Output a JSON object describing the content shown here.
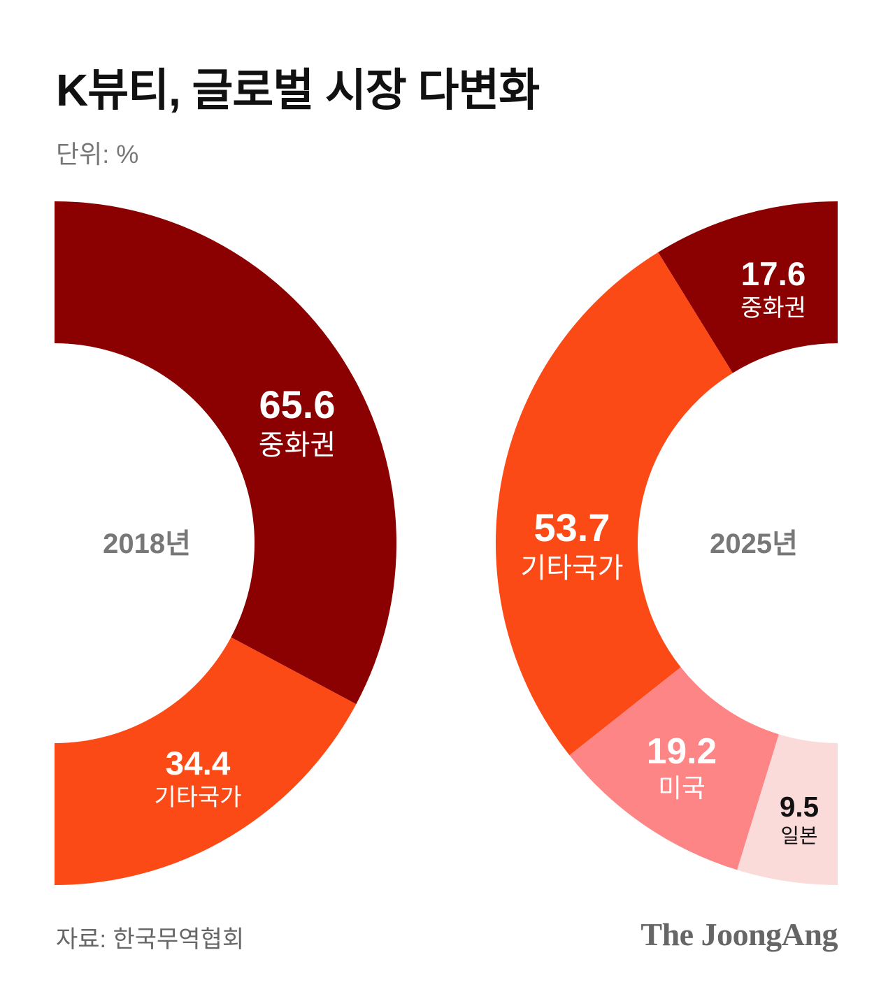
{
  "title": "K뷰티, 글로벌 시장 다변화",
  "unit": "단위: %",
  "source": "자료: 한국무역협회",
  "brand": "The JoongAng",
  "colors": {
    "china": "#8b0000",
    "others": "#fc4a17",
    "usa": "#fd8585",
    "japan": "#fbdada",
    "center_text": "#777777"
  },
  "chart_data": [
    {
      "type": "pie",
      "center_label": "2018년",
      "slices": [
        {
          "label": "중화권",
          "value": 65.6,
          "color": "#8b0000",
          "text_color": "#ffffff"
        },
        {
          "label": "기타국가",
          "value": 34.4,
          "color": "#fc4a17",
          "text_color": "#ffffff"
        }
      ]
    },
    {
      "type": "pie",
      "center_label": "2025년",
      "slices": [
        {
          "label": "중화권",
          "value": 17.6,
          "color": "#8b0000",
          "text_color": "#ffffff"
        },
        {
          "label": "기타국가",
          "value": 53.7,
          "color": "#fc4a17",
          "text_color": "#ffffff"
        },
        {
          "label": "미국",
          "value": 19.2,
          "color": "#fd8585",
          "text_color": "#ffffff"
        },
        {
          "label": "일본",
          "value": 9.5,
          "color": "#fbdada",
          "text_color": "#111111"
        }
      ]
    }
  ]
}
